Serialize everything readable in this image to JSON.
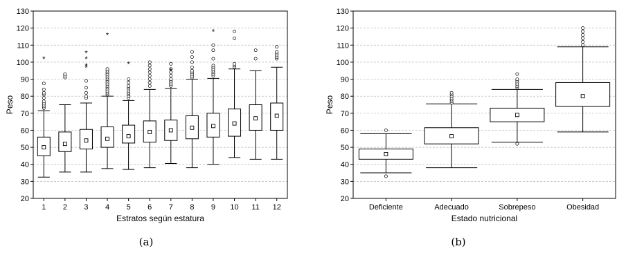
{
  "chart_data": [
    {
      "type": "box",
      "caption": "(a)",
      "xlabel": "Estratos según estatura",
      "ylabel": "Peso",
      "ylim": [
        20,
        130
      ],
      "yticks": [
        20,
        30,
        40,
        50,
        60,
        70,
        80,
        90,
        100,
        110,
        120,
        130
      ],
      "grid": true,
      "categories": [
        "1",
        "2",
        "3",
        "4",
        "5",
        "6",
        "7",
        "8",
        "9",
        "10",
        "11",
        "12"
      ],
      "boxes": [
        {
          "min": 32.5,
          "q1": 45,
          "median": 50,
          "q3": 56,
          "max": 71.5,
          "outliers": [
            73,
            74,
            75,
            76,
            77,
            79,
            81,
            82,
            84,
            87.5
          ],
          "extremes": [
            102
          ]
        },
        {
          "min": 35.5,
          "q1": 47.5,
          "median": 52,
          "q3": 59,
          "max": 75,
          "outliers": [
            91,
            92,
            93
          ],
          "extremes": []
        },
        {
          "min": 35.5,
          "q1": 49,
          "median": 54,
          "q3": 60.5,
          "max": 76,
          "outliers": [
            79,
            80,
            82,
            85,
            89
          ],
          "extremes": [
            97,
            98,
            102,
            105.5
          ]
        },
        {
          "min": 37.5,
          "q1": 50,
          "median": 55,
          "q3": 62,
          "max": 80,
          "outliers": [
            81,
            82,
            83,
            84,
            85,
            86,
            87,
            88,
            89,
            90,
            91,
            92,
            93,
            94,
            95,
            96
          ],
          "extremes": [
            116
          ]
        },
        {
          "min": 37,
          "q1": 52.5,
          "median": 56.5,
          "q3": 63,
          "max": 77.5,
          "outliers": [
            79,
            80,
            81,
            82,
            83,
            84,
            85,
            86,
            88,
            90
          ],
          "extremes": [
            99
          ]
        },
        {
          "min": 38,
          "q1": 53,
          "median": 59,
          "q3": 65.5,
          "max": 84,
          "outliers": [
            86,
            88,
            90,
            92,
            94,
            96,
            98,
            100
          ],
          "extremes": []
        },
        {
          "min": 40.5,
          "q1": 54,
          "median": 60,
          "q3": 66,
          "max": 84.5,
          "outliers": [
            86,
            87,
            88,
            89,
            90,
            92,
            94,
            96,
            99
          ],
          "extremes": [
            95
          ]
        },
        {
          "min": 38,
          "q1": 55,
          "median": 61.5,
          "q3": 68.5,
          "max": 90,
          "outliers": [
            91,
            92,
            93,
            94,
            95,
            97,
            100,
            103,
            106
          ],
          "extremes": []
        },
        {
          "min": 40,
          "q1": 56,
          "median": 62.5,
          "q3": 70,
          "max": 90.5,
          "outliers": [
            92,
            93,
            94,
            95,
            96,
            97,
            98,
            102,
            107,
            110
          ],
          "extremes": [
            118
          ]
        },
        {
          "min": 44,
          "q1": 56.5,
          "median": 64,
          "q3": 72.5,
          "max": 96,
          "outliers": [
            97,
            98,
            99,
            114,
            118
          ],
          "extremes": []
        },
        {
          "min": 43,
          "q1": 60,
          "median": 67,
          "q3": 75,
          "max": 95,
          "outliers": [
            102,
            107
          ],
          "extremes": []
        },
        {
          "min": 43,
          "q1": 60,
          "median": 68.5,
          "q3": 76,
          "max": 97,
          "outliers": [
            102,
            103,
            104,
            105,
            106,
            109
          ],
          "extremes": []
        }
      ]
    },
    {
      "type": "box",
      "caption": "(b)",
      "xlabel": "Estado nutricional",
      "ylabel": "Peso",
      "ylim": [
        20,
        130
      ],
      "yticks": [
        20,
        30,
        40,
        50,
        60,
        70,
        80,
        90,
        100,
        110,
        120,
        130
      ],
      "grid": true,
      "categories": [
        "Deficiente",
        "Adecuado",
        "Sobrepeso",
        "Obesidad"
      ],
      "boxes": [
        {
          "min": 35,
          "q1": 43,
          "median": 46,
          "q3": 49,
          "max": 58,
          "outliers": [
            33,
            60
          ],
          "extremes": []
        },
        {
          "min": 38,
          "q1": 52,
          "median": 56.5,
          "q3": 61.5,
          "max": 75.5,
          "outliers": [
            76,
            77,
            78,
            79,
            80,
            81,
            82
          ],
          "extremes": []
        },
        {
          "min": 53,
          "q1": 65,
          "median": 69,
          "q3": 73,
          "max": 84,
          "outliers": [
            52,
            85,
            86,
            87,
            88,
            89,
            90,
            93
          ],
          "extremes": []
        },
        {
          "min": 59,
          "q1": 74,
          "median": 80,
          "q3": 88,
          "max": 109,
          "outliers": [
            110,
            112,
            114,
            116,
            118,
            120
          ],
          "extremes": []
        }
      ]
    }
  ]
}
